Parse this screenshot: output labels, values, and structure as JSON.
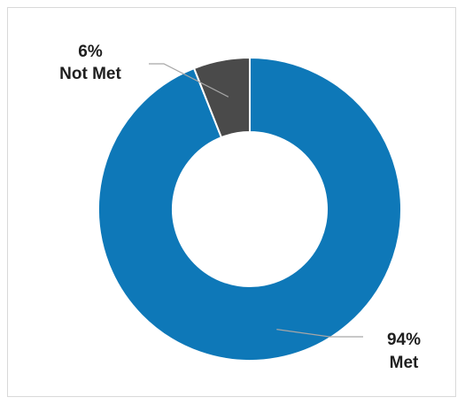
{
  "chart_data": {
    "type": "pie",
    "variant": "donut",
    "title": "",
    "slices": [
      {
        "name": "Met",
        "value": 94,
        "percent_label": "94%",
        "category_label": "Met",
        "color": "#0E78B8"
      },
      {
        "name": "Not Met",
        "value": 6,
        "percent_label": "6%",
        "category_label": "Not Met",
        "color": "#4A4A4A"
      }
    ],
    "legend": "none",
    "data_labels": "outside-with-leader-lines",
    "start_angle": "12 o'clock",
    "direction": "clockwise"
  }
}
